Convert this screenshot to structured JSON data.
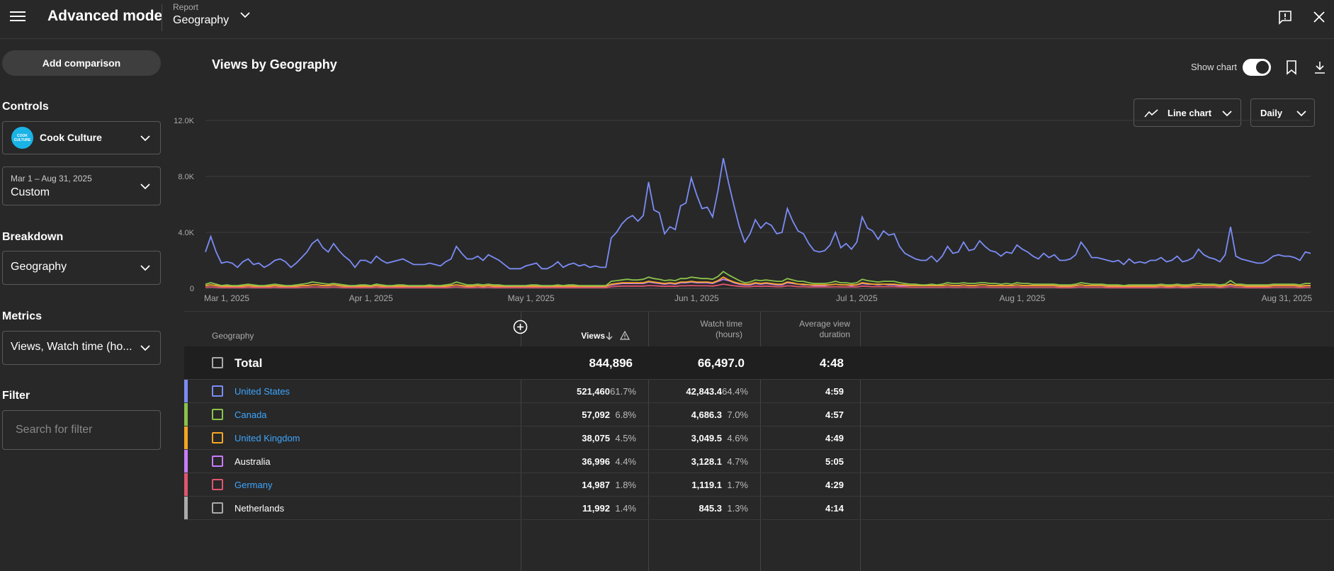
{
  "header": {
    "title": "Advanced mode",
    "report_label": "Report",
    "report_value": "Geography"
  },
  "sidebar": {
    "add_comparison": "Add comparison",
    "controls_heading": "Controls",
    "channel_name": "Cook Culture",
    "channel_logo_text": "COOK CULTURE",
    "date_range": "Mar 1 – Aug 31, 2025",
    "date_preset": "Custom",
    "breakdown_heading": "Breakdown",
    "breakdown_value": "Geography",
    "metrics_heading": "Metrics",
    "metrics_value": "Views, Watch time (ho...",
    "filter_heading": "Filter",
    "filter_placeholder": "Search for filter"
  },
  "main": {
    "chart_title": "Views by Geography",
    "show_chart_label": "Show chart",
    "show_chart_on": true,
    "chart_type": "Line chart",
    "granularity": "Daily"
  },
  "chart_data": {
    "type": "line",
    "x_tick_labels": [
      "Mar 1, 2025",
      "Apr 1, 2025",
      "May 1, 2025",
      "Jun 1, 2025",
      "Jul 1, 2025",
      "Aug 1, 2025",
      "Aug 31, 2025"
    ],
    "y_tick_labels": [
      "0",
      "4.0K",
      "8.0K",
      "12.0K"
    ],
    "ylim": [
      0,
      12000
    ],
    "grid": true,
    "series": [
      {
        "name": "United States",
        "color": "#7b8cf6",
        "values": [
          2600,
          3700,
          2600,
          1800,
          1900,
          1800,
          1500,
          1900,
          2100,
          1700,
          1800,
          1500,
          1700,
          2000,
          2100,
          1900,
          1500,
          1800,
          2200,
          2600,
          3200,
          3500,
          2900,
          2600,
          3200,
          2700,
          2300,
          2000,
          1500,
          2000,
          2000,
          1800,
          2300,
          2000,
          1800,
          1900,
          2000,
          2100,
          1900,
          1700,
          1700,
          1700,
          1800,
          1700,
          1600,
          1900,
          2100,
          3000,
          2500,
          2100,
          2100,
          2300,
          2000,
          2400,
          2200,
          2000,
          1700,
          1400,
          1400,
          1400,
          1600,
          1700,
          1800,
          1400,
          1400,
          1600,
          1900,
          1500,
          1700,
          1800,
          1600,
          1700,
          1500,
          1600,
          1500,
          1500,
          3600,
          4000,
          4600,
          5000,
          5200,
          4800,
          5200,
          7600,
          5600,
          5400,
          3900,
          4400,
          4200,
          5900,
          6100,
          7900,
          6700,
          5700,
          5800,
          5100,
          7000,
          9300,
          7500,
          5900,
          4400,
          3300,
          3900,
          4900,
          4300,
          4700,
          4500,
          3900,
          4000,
          5700,
          4800,
          4100,
          3900,
          3200,
          2700,
          2600,
          2700,
          3100,
          4000,
          2900,
          3200,
          2800,
          3300,
          5100,
          4300,
          4100,
          3500,
          4100,
          3800,
          3900,
          3000,
          2500,
          2300,
          2100,
          2000,
          2000,
          2300,
          1900,
          2300,
          3000,
          2500,
          2600,
          3300,
          2700,
          2800,
          3400,
          3000,
          2700,
          2600,
          2300,
          2600,
          2500,
          3100,
          2800,
          2600,
          2300,
          2100,
          2500,
          2200,
          2400,
          2000,
          2000,
          2100,
          2400,
          3300,
          2800,
          2200,
          2200,
          2100,
          2000,
          1900,
          2000,
          1700,
          2100,
          1800,
          1900,
          1800,
          2000,
          2000,
          2200,
          1900,
          2000,
          2300,
          1900,
          2000,
          2200,
          2800,
          2400,
          2200,
          2100,
          1900,
          2400,
          4400,
          2300,
          2100,
          2000,
          1900,
          1800,
          1800,
          2000,
          2300,
          2400,
          2300,
          2300,
          2200,
          2000,
          2600,
          2500
        ]
      },
      {
        "name": "Canada",
        "color": "#8bc34a",
        "values": [
          300,
          400,
          300,
          200,
          250,
          200,
          200,
          250,
          300,
          250,
          200,
          200,
          250,
          300,
          250,
          200,
          200,
          250,
          300,
          350,
          450,
          400,
          350,
          300,
          350,
          300,
          250,
          200,
          200,
          250,
          250,
          200,
          300,
          250,
          200,
          200,
          250,
          250,
          200,
          200,
          200,
          200,
          250,
          200,
          200,
          250,
          300,
          450,
          350,
          250,
          250,
          300,
          250,
          300,
          250,
          250,
          200,
          200,
          200,
          200,
          200,
          250,
          250,
          200,
          200,
          200,
          250,
          200,
          250,
          250,
          200,
          200,
          200,
          200,
          200,
          200,
          500,
          550,
          600,
          650,
          600,
          600,
          650,
          800,
          700,
          650,
          550,
          600,
          550,
          700,
          700,
          800,
          750,
          700,
          700,
          650,
          850,
          1200,
          950,
          750,
          550,
          400,
          450,
          600,
          550,
          600,
          550,
          500,
          500,
          700,
          600,
          500,
          500,
          400,
          350,
          350,
          350,
          400,
          500,
          400,
          400,
          350,
          400,
          650,
          550,
          500,
          450,
          500,
          500,
          500,
          400,
          350,
          300,
          300,
          250,
          250,
          300,
          250,
          300,
          400,
          350,
          350,
          400,
          350,
          350,
          400,
          400,
          350,
          350,
          300,
          350,
          300,
          400,
          350,
          350,
          300,
          300,
          300,
          300,
          300,
          250,
          250,
          250,
          300,
          400,
          350,
          300,
          300,
          300,
          250,
          250,
          250,
          200,
          250,
          250,
          250,
          250,
          250,
          250,
          300,
          250,
          250,
          300,
          250,
          250,
          300,
          350,
          300,
          300,
          300,
          250,
          300,
          550,
          300,
          300,
          250,
          250,
          250,
          250,
          250,
          300,
          300,
          300,
          300,
          300,
          250,
          350,
          350
        ]
      },
      {
        "name": "United Kingdom",
        "color": "#f5a623",
        "values": [
          200,
          250,
          200,
          150,
          150,
          150,
          150,
          150,
          200,
          150,
          150,
          150,
          150,
          200,
          150,
          150,
          150,
          150,
          200,
          200,
          250,
          250,
          200,
          200,
          250,
          200,
          150,
          150,
          150,
          150,
          150,
          150,
          200,
          150,
          150,
          150,
          150,
          150,
          150,
          150,
          150,
          150,
          150,
          150,
          150,
          150,
          200,
          250,
          200,
          150,
          150,
          200,
          150,
          200,
          150,
          150,
          150,
          150,
          150,
          150,
          150,
          150,
          150,
          150,
          150,
          150,
          150,
          150,
          150,
          150,
          150,
          150,
          150,
          150,
          150,
          150,
          300,
          350,
          400,
          400,
          400,
          400,
          400,
          500,
          450,
          400,
          350,
          400,
          350,
          450,
          450,
          500,
          450,
          450,
          450,
          400,
          550,
          800,
          600,
          450,
          350,
          300,
          300,
          400,
          350,
          400,
          350,
          300,
          300,
          450,
          400,
          300,
          300,
          250,
          250,
          250,
          250,
          250,
          300,
          250,
          250,
          250,
          250,
          400,
          350,
          300,
          300,
          300,
          300,
          300,
          250,
          250,
          200,
          200,
          200,
          200,
          200,
          200,
          200,
          250,
          200,
          200,
          250,
          200,
          200,
          250,
          250,
          200,
          200,
          200,
          200,
          200,
          250,
          200,
          200,
          200,
          200,
          200,
          200,
          200,
          150,
          150,
          150,
          200,
          250,
          200,
          200,
          200,
          200,
          150,
          150,
          150,
          150,
          150,
          150,
          150,
          150,
          150,
          150,
          200,
          150,
          150,
          200,
          150,
          150,
          200,
          200,
          200,
          200,
          200,
          150,
          200,
          300,
          200,
          200,
          150,
          150,
          150,
          150,
          150,
          200,
          200,
          200,
          200,
          200,
          150,
          200,
          200
        ]
      },
      {
        "name": "Australia",
        "color": "#c77dff",
        "values": [
          200,
          250,
          200,
          150,
          150,
          150,
          150,
          150,
          200,
          150,
          150,
          150,
          150,
          200,
          150,
          150,
          150,
          150,
          200,
          200,
          250,
          250,
          200,
          200,
          250,
          200,
          150,
          150,
          150,
          150,
          150,
          150,
          200,
          150,
          150,
          150,
          150,
          150,
          150,
          150,
          150,
          150,
          150,
          150,
          150,
          150,
          200,
          250,
          200,
          150,
          150,
          200,
          150,
          200,
          150,
          150,
          150,
          150,
          150,
          150,
          150,
          150,
          150,
          150,
          150,
          150,
          150,
          150,
          150,
          150,
          150,
          150,
          150,
          150,
          150,
          150,
          250,
          300,
          350,
          350,
          350,
          350,
          350,
          450,
          400,
          350,
          300,
          350,
          300,
          400,
          400,
          450,
          400,
          400,
          400,
          350,
          500,
          650,
          550,
          400,
          300,
          250,
          250,
          350,
          300,
          350,
          300,
          250,
          250,
          400,
          350,
          300,
          250,
          250,
          200,
          200,
          200,
          250,
          300,
          250,
          250,
          200,
          250,
          350,
          300,
          300,
          250,
          300,
          250,
          250,
          200,
          200,
          200,
          200,
          200,
          200,
          200,
          200,
          200,
          250,
          200,
          200,
          250,
          200,
          200,
          250,
          250,
          200,
          200,
          200,
          200,
          200,
          250,
          200,
          200,
          200,
          200,
          200,
          200,
          200,
          150,
          150,
          150,
          200,
          250,
          200,
          200,
          200,
          200,
          150,
          150,
          150,
          150,
          150,
          150,
          150,
          150,
          150,
          150,
          200,
          150,
          150,
          200,
          150,
          150,
          200,
          200,
          200,
          200,
          200,
          150,
          200,
          250,
          200,
          200,
          150,
          150,
          150,
          150,
          150,
          200,
          200,
          200,
          200,
          200,
          150,
          200,
          200
        ]
      },
      {
        "name": "Germany",
        "color": "#e0566f",
        "values": [
          80,
          100,
          80,
          60,
          60,
          60,
          60,
          60,
          80,
          60,
          60,
          60,
          60,
          80,
          60,
          60,
          60,
          60,
          80,
          80,
          100,
          100,
          80,
          80,
          100,
          80,
          60,
          60,
          60,
          60,
          60,
          60,
          80,
          60,
          60,
          60,
          60,
          60,
          60,
          60,
          60,
          60,
          60,
          60,
          60,
          60,
          80,
          100,
          80,
          60,
          60,
          80,
          60,
          80,
          60,
          60,
          60,
          60,
          60,
          60,
          60,
          60,
          60,
          60,
          60,
          60,
          60,
          60,
          60,
          60,
          60,
          60,
          60,
          60,
          60,
          60,
          120,
          140,
          160,
          160,
          160,
          160,
          160,
          200,
          180,
          160,
          140,
          160,
          140,
          180,
          180,
          200,
          180,
          180,
          180,
          160,
          220,
          300,
          240,
          180,
          140,
          120,
          120,
          160,
          140,
          160,
          140,
          120,
          120,
          180,
          160,
          120,
          120,
          100,
          100,
          100,
          100,
          100,
          120,
          100,
          100,
          100,
          100,
          160,
          140,
          120,
          120,
          120,
          120,
          120,
          100,
          100,
          80,
          80,
          80,
          80,
          80,
          80,
          80,
          100,
          80,
          80,
          100,
          80,
          80,
          100,
          100,
          80,
          80,
          80,
          80,
          80,
          100,
          80,
          80,
          80,
          80,
          80,
          80,
          80,
          60,
          60,
          60,
          80,
          100,
          80,
          80,
          80,
          80,
          60,
          60,
          60,
          60,
          60,
          60,
          60,
          60,
          60,
          60,
          80,
          60,
          60,
          80,
          60,
          60,
          80,
          80,
          80,
          80,
          80,
          60,
          80,
          120,
          80,
          80,
          60,
          60,
          60,
          60,
          60,
          80,
          80,
          80,
          80,
          80,
          60,
          80,
          80
        ]
      }
    ]
  },
  "table": {
    "col_geography": "Geography",
    "col_views": "Views",
    "col_watch_1": "Watch time",
    "col_watch_2": "(hours)",
    "col_avd_1": "Average view",
    "col_avd_2": "duration",
    "total": {
      "label": "Total",
      "views": "844,896",
      "watch": "66,497.0",
      "avd": "4:48"
    },
    "rows": [
      {
        "name": "United States",
        "link": true,
        "color": "#7b8cf6",
        "views": "521,460",
        "views_pct": "61.7%",
        "watch": "42,843.4",
        "watch_pct": "64.4%",
        "avd": "4:59"
      },
      {
        "name": "Canada",
        "link": true,
        "color": "#8bc34a",
        "views": "57,092",
        "views_pct": "6.8%",
        "watch": "4,686.3",
        "watch_pct": "7.0%",
        "avd": "4:57"
      },
      {
        "name": "United Kingdom",
        "link": true,
        "color": "#f5a623",
        "views": "38,075",
        "views_pct": "4.5%",
        "watch": "3,049.5",
        "watch_pct": "4.6%",
        "avd": "4:49"
      },
      {
        "name": "Australia",
        "link": false,
        "color": "#c77dff",
        "views": "36,996",
        "views_pct": "4.4%",
        "watch": "3,128.1",
        "watch_pct": "4.7%",
        "avd": "5:05"
      },
      {
        "name": "Germany",
        "link": true,
        "color": "#e0566f",
        "views": "14,987",
        "views_pct": "1.8%",
        "watch": "1,119.1",
        "watch_pct": "1.7%",
        "avd": "4:29"
      },
      {
        "name": "Netherlands",
        "link": false,
        "color": "#aaaaaa",
        "views": "11,992",
        "views_pct": "1.4%",
        "watch": "845.3",
        "watch_pct": "1.3%",
        "avd": "4:14"
      }
    ]
  }
}
